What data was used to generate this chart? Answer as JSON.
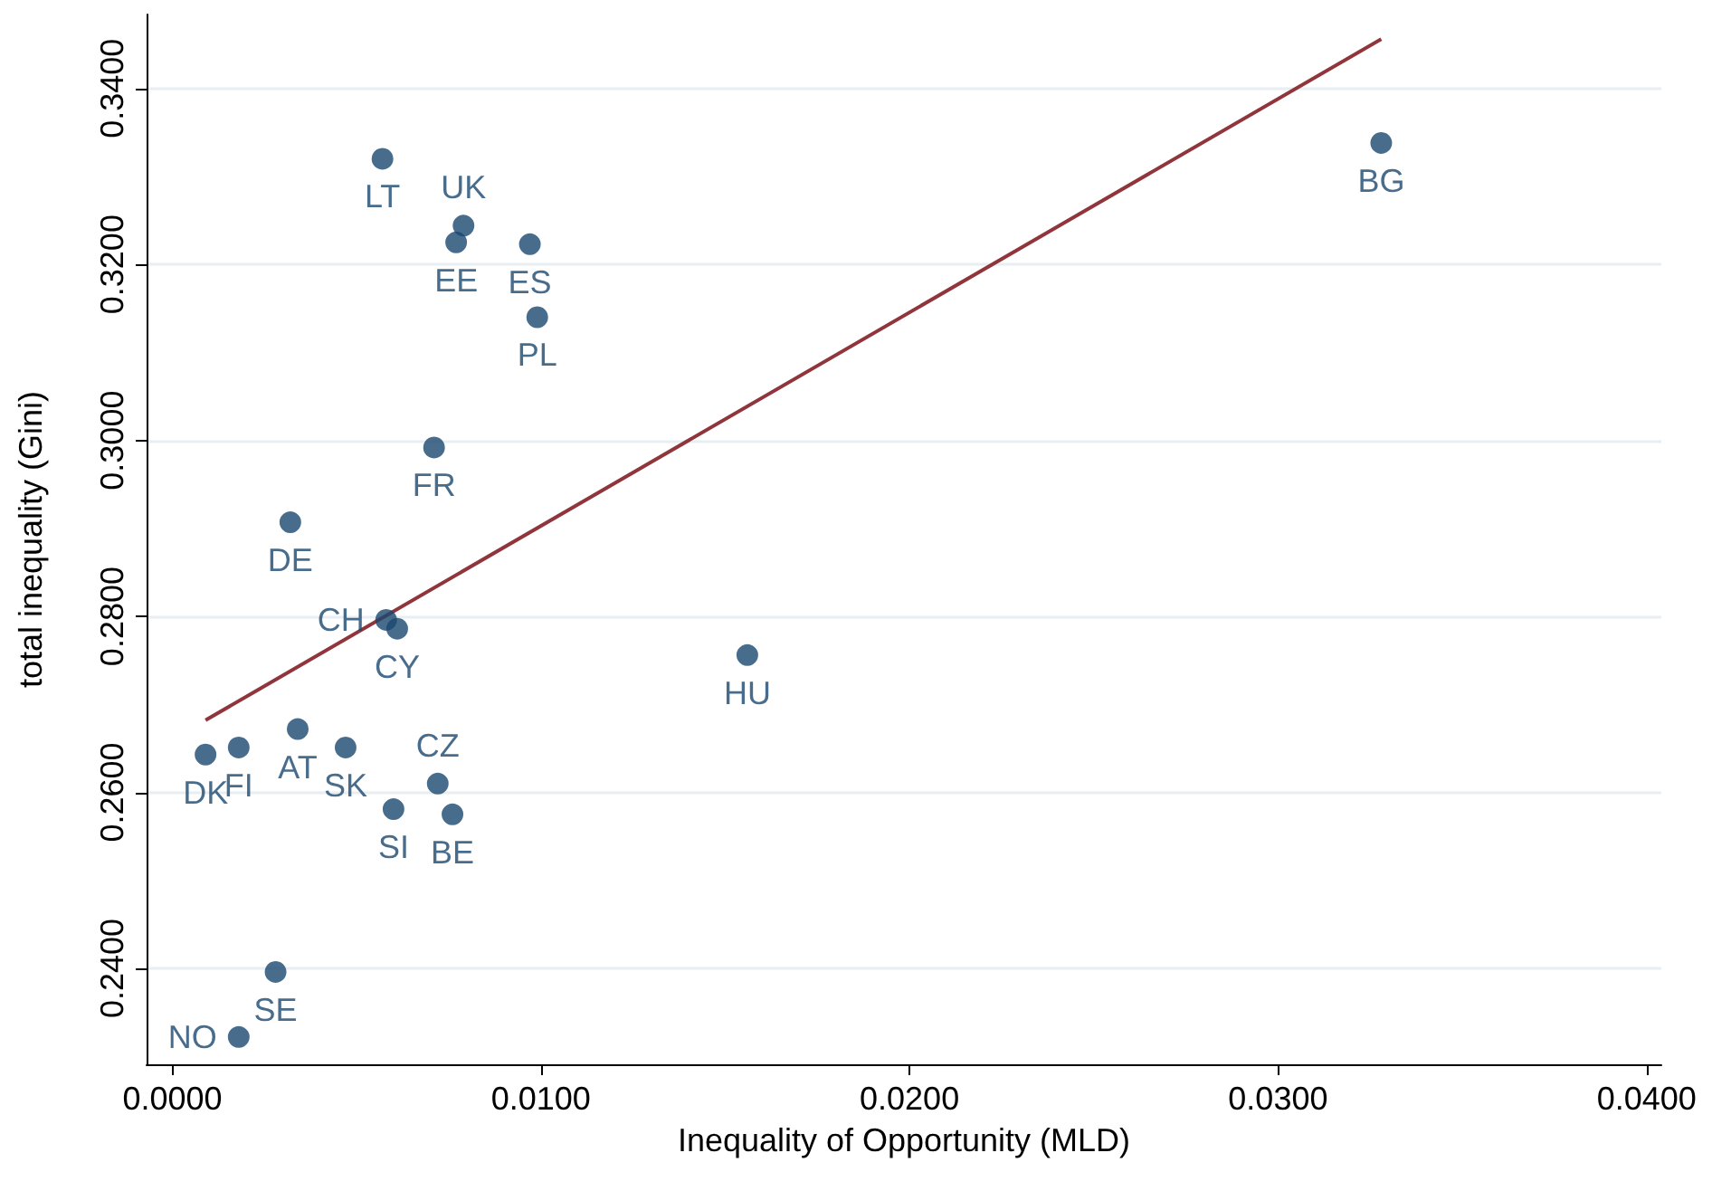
{
  "chart_data": {
    "type": "scatter",
    "xlabel": "Inequality of Opportunity (MLD)",
    "ylabel": "total inequality (Gini)",
    "xlim": [
      -0.0007,
      0.0404
    ],
    "ylim": [
      0.2291,
      0.3484
    ],
    "xticks": [
      {
        "value": 0,
        "label": "0.0000"
      },
      {
        "value": 0.01,
        "label": "0.0100"
      },
      {
        "value": 0.02,
        "label": "0.0200"
      },
      {
        "value": 0.03,
        "label": "0.0300"
      },
      {
        "value": 0.04,
        "label": "0.0400"
      }
    ],
    "yticks": [
      {
        "value": 0.24,
        "label": "0.2400"
      },
      {
        "value": 0.26,
        "label": "0.2600"
      },
      {
        "value": 0.28,
        "label": "0.2800"
      },
      {
        "value": 0.3,
        "label": "0.3000"
      },
      {
        "value": 0.32,
        "label": "0.3200"
      },
      {
        "value": 0.34,
        "label": "0.3400"
      }
    ],
    "grid": "y",
    "series": [
      {
        "marker": "circle",
        "color": "#1a476f",
        "x": [
          0.0057,
          0.0079,
          0.0077,
          0.0097,
          0.0099,
          0.0328,
          0.0071,
          0.0032,
          0.0058,
          0.0061,
          0.0156,
          0.0034,
          0.0009,
          0.0018,
          0.0047,
          0.0072,
          0.006,
          0.0076,
          0.0028,
          0.0018
        ],
        "values": [
          0.332,
          0.3244,
          0.3225,
          0.3223,
          0.314,
          0.3338,
          0.2992,
          0.2907,
          0.2796,
          0.2786,
          0.2756,
          0.2672,
          0.2643,
          0.2651,
          0.2651,
          0.261,
          0.2581,
          0.2575,
          0.2396,
          0.2322
        ],
        "value_labels": [
          "LT",
          "UK",
          "EE",
          "ES",
          "PL",
          "BG",
          "FR",
          "DE",
          "CH",
          "CY",
          "HU",
          "AT",
          "DK",
          "FI",
          "SK",
          "CZ",
          "SI",
          "BE",
          "SE",
          "NO"
        ]
      },
      {
        "type": "line",
        "marker": "none",
        "color": "#90353b",
        "x": [
          0.0009,
          0.0328
        ],
        "values": [
          0.2682,
          0.3456
        ]
      }
    ]
  }
}
